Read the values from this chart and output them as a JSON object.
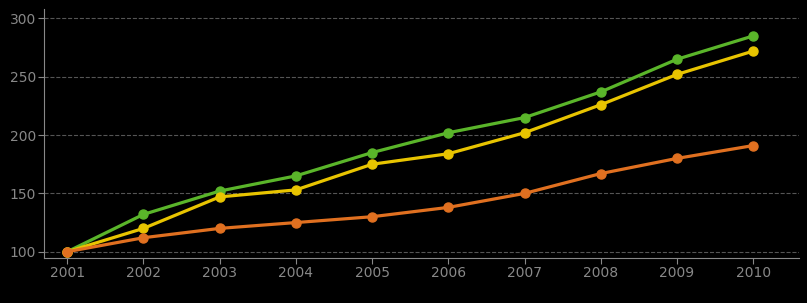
{
  "years": [
    2001,
    2002,
    2003,
    2004,
    2005,
    2006,
    2007,
    2008,
    2009,
    2010
  ],
  "series": [
    {
      "name": "green",
      "color": "#5ab52a",
      "values": [
        100,
        132,
        152,
        165,
        185,
        202,
        215,
        237,
        265,
        285
      ]
    },
    {
      "name": "yellow",
      "color": "#e8c400",
      "values": [
        100,
        120,
        147,
        153,
        175,
        184,
        202,
        226,
        252,
        272
      ]
    },
    {
      "name": "orange",
      "color": "#e07020",
      "values": [
        100,
        112,
        120,
        125,
        130,
        138,
        150,
        167,
        180,
        191
      ]
    }
  ],
  "ylim": [
    95,
    308
  ],
  "yticks": [
    100,
    150,
    200,
    250,
    300
  ],
  "xlim": [
    2000.7,
    2010.6
  ],
  "background_color": "#000000",
  "grid_color": "#555555",
  "text_color": "#888888",
  "tick_fontsize": 10,
  "linewidth": 2.3,
  "markersize": 6.5
}
